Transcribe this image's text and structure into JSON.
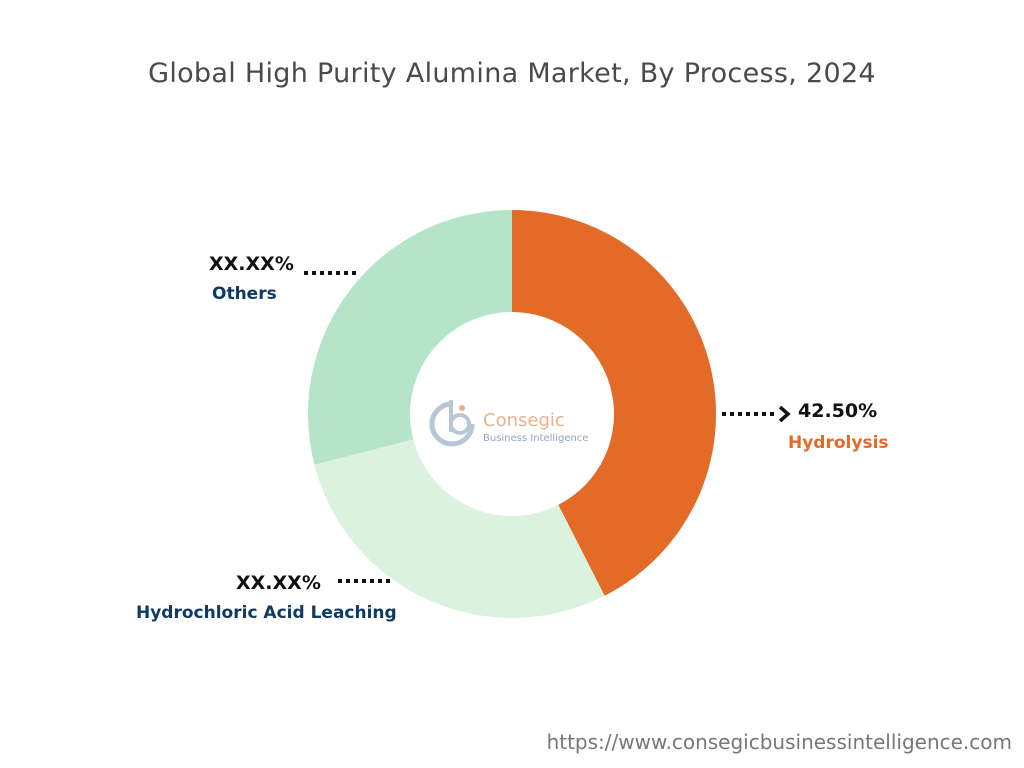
{
  "title": "Global High Purity Alumina Market, By Process, 2024",
  "url": "https://www.consegicbusinessintelligence.com",
  "logo": {
    "name": "Consegic",
    "tagline": "Business Intelligence"
  },
  "colors": {
    "hydrolysis": "#e36a27",
    "hcl": "#daf2de",
    "others": "#b5e4c9",
    "label_dark": "#0e3a66",
    "label_orange": "#e36a27"
  },
  "chart_data": {
    "type": "pie",
    "donut": true,
    "title": "Global High Purity Alumina Market, By Process, 2024",
    "slices": [
      {
        "name": "Hydrolysis",
        "value": 42.5,
        "label": "42.50%",
        "color": "#e36a27",
        "label_color": "#e36a27"
      },
      {
        "name": "Hydrochloric Acid Leaching",
        "value": 28.5,
        "label": "XX.XX%",
        "color": "#daf2de",
        "label_color": "#0e3a66"
      },
      {
        "name": "Others",
        "value": 29.0,
        "label": "XX.XX%",
        "color": "#b5e4c9",
        "label_color": "#0e3a66"
      }
    ]
  }
}
